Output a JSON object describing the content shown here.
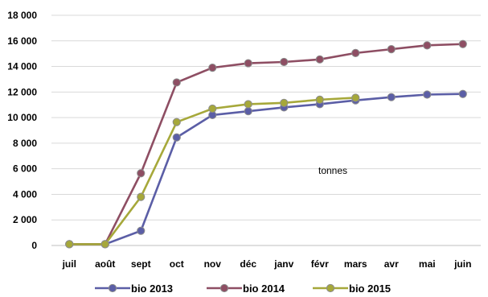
{
  "chart_data": {
    "type": "line",
    "categories": [
      "juil",
      "août",
      "sept",
      "oct",
      "nov",
      "déc",
      "janv",
      "févr",
      "mars",
      "avr",
      "mai",
      "juin"
    ],
    "ylim": [
      0,
      18000
    ],
    "yticks": [
      0,
      2000,
      4000,
      6000,
      8000,
      10000,
      12000,
      14000,
      16000,
      18000
    ],
    "ytick_labels": [
      "0",
      "2 000",
      "4 000",
      "6 000",
      "8 000",
      "10 000",
      "12 000",
      "14 000",
      "16 000",
      "18 000"
    ],
    "unit_label": "tonnes",
    "grid": "horizontal",
    "legend_position": "bottom",
    "series": [
      {
        "name": "bio 2013",
        "color": "#5b5ea6",
        "values": [
          100,
          100,
          1150,
          8450,
          10200,
          10500,
          10800,
          11050,
          11350,
          11600,
          11800,
          11850
        ]
      },
      {
        "name": "bio 2014",
        "color": "#8e4e63",
        "values": [
          100,
          100,
          5650,
          12750,
          13900,
          14250,
          14350,
          14550,
          15050,
          15350,
          15650,
          15750
        ]
      },
      {
        "name": "bio 2015",
        "color": "#a6a83a",
        "values": [
          100,
          100,
          3800,
          9650,
          10700,
          11050,
          11150,
          11400,
          11550,
          null,
          null,
          null
        ]
      }
    ]
  }
}
